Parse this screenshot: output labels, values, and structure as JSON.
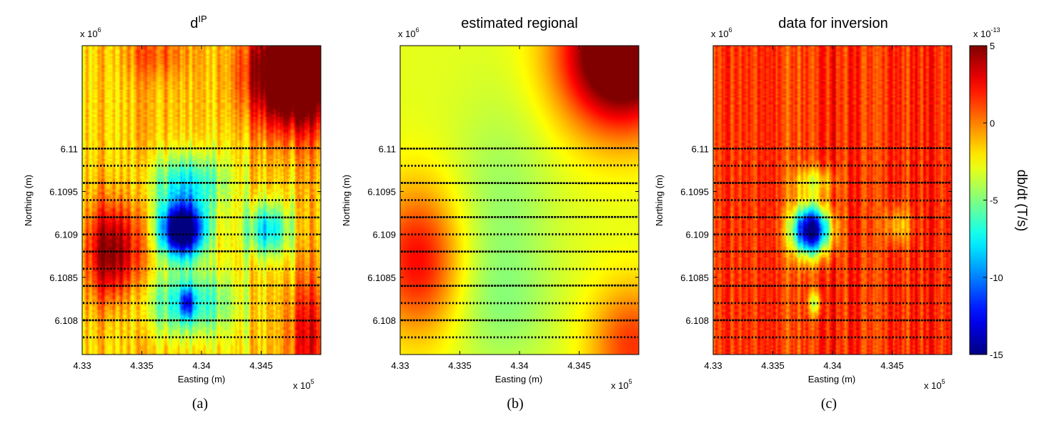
{
  "chart_data": [
    {
      "id": "a",
      "type": "heatmap",
      "title": "d",
      "title_sup": "IP",
      "subfigure_label": "(a)",
      "xlabel": "Easting (m)",
      "ylabel": "Northing (m)",
      "x_exponent_label": "x 10",
      "x_exponent": "5",
      "y_exponent_label": "x 10",
      "y_exponent": "6",
      "xlim": [
        4.33,
        4.35
      ],
      "ylim": [
        6.1076,
        6.1112
      ],
      "x_ticks": [
        4.33,
        4.335,
        4.34,
        4.345
      ],
      "x_tick_labels": [
        "4.33",
        "4.335",
        "4.34",
        "4.345"
      ],
      "y_ticks": [
        6.108,
        6.1085,
        6.109,
        6.1095,
        6.11
      ],
      "y_tick_labels": [
        "6.108",
        "6.1085",
        "6.109",
        "6.1095",
        "6.11"
      ],
      "z_base": -1.5,
      "anomalies": [
        {
          "x": 4.3384,
          "y": 6.10905,
          "value": -17,
          "rx": 0.0013,
          "ry": 0.00022
        },
        {
          "x": 4.3388,
          "y": 6.1096,
          "value": -6,
          "rx": 0.0022,
          "ry": 0.00025
        },
        {
          "x": 4.3455,
          "y": 6.10905,
          "value": -6.5,
          "rx": 0.0013,
          "ry": 0.00022
        },
        {
          "x": 4.3388,
          "y": 6.1082,
          "value": -6,
          "rx": 0.0025,
          "ry": 0.00028
        },
        {
          "x": 4.3388,
          "y": 6.1082,
          "value": -6,
          "rx": 0.0004,
          "ry": 0.00012
        },
        {
          "x": 4.3478,
          "y": 6.1109,
          "value": 13,
          "rx": 0.0026,
          "ry": 0.00045
        },
        {
          "x": 4.3325,
          "y": 6.1088,
          "value": 7,
          "rx": 0.0015,
          "ry": 0.0004
        },
        {
          "x": 4.349,
          "y": 6.1078,
          "value": 4,
          "rx": 0.0014,
          "ry": 0.0005
        },
        {
          "x": 4.3362,
          "y": 6.1111,
          "value": 2,
          "rx": 0.002,
          "ry": 0.0002
        }
      ],
      "streak_amp": 2.2,
      "survey_lines_y": [
        6.11,
        6.1098,
        6.1096,
        6.1094,
        6.1092,
        6.109,
        6.1088,
        6.1086,
        6.1084,
        6.1082,
        6.108,
        6.1078
      ]
    },
    {
      "id": "b",
      "type": "heatmap",
      "title": "estimated regional",
      "subfigure_label": "(b)",
      "xlabel": "Easting (m)",
      "ylabel": "Northing (m)",
      "x_exponent_label": "x 10",
      "x_exponent": "5",
      "y_exponent_label": "x 10",
      "y_exponent": "6",
      "xlim": [
        4.33,
        4.35
      ],
      "ylim": [
        6.1076,
        6.1112
      ],
      "x_ticks": [
        4.33,
        4.335,
        4.34,
        4.345
      ],
      "x_tick_labels": [
        "4.33",
        "4.335",
        "4.34",
        "4.345"
      ],
      "y_ticks": [
        6.108,
        6.1085,
        6.109,
        6.1095,
        6.11
      ],
      "y_tick_labels": [
        "6.108",
        "6.1085",
        "6.109",
        "6.1095",
        "6.11"
      ],
      "z_base": -3,
      "anomalies": [
        {
          "x": 4.3485,
          "y": 6.1111,
          "value": 12,
          "rx": 0.0035,
          "ry": 0.0006
        },
        {
          "x": 4.3315,
          "y": 6.1087,
          "value": 5.5,
          "rx": 0.0025,
          "ry": 0.0006
        },
        {
          "x": 4.3495,
          "y": 6.1077,
          "value": 4.5,
          "rx": 0.0025,
          "ry": 0.0005
        },
        {
          "x": 4.3385,
          "y": 6.1093,
          "value": -1.5,
          "rx": 0.003,
          "ry": 0.0009
        },
        {
          "x": 4.3385,
          "y": 6.1081,
          "value": -1.2,
          "rx": 0.003,
          "ry": 0.0005
        }
      ],
      "streak_amp": 0,
      "survey_lines_y": [
        6.11,
        6.1098,
        6.1096,
        6.1094,
        6.1092,
        6.109,
        6.1088,
        6.1086,
        6.1084,
        6.1082,
        6.108,
        6.1078
      ]
    },
    {
      "id": "c",
      "type": "heatmap",
      "title": "data for inversion",
      "subfigure_label": "(c)",
      "xlabel": "Easting (m)",
      "ylabel": "Northing (m)",
      "x_exponent_label": "x 10",
      "x_exponent": "5",
      "y_exponent_label": "x 10",
      "y_exponent": "6",
      "xlim": [
        4.33,
        4.35
      ],
      "ylim": [
        6.1076,
        6.1112
      ],
      "x_ticks": [
        4.33,
        4.335,
        4.34,
        4.345
      ],
      "x_tick_labels": [
        "4.33",
        "4.335",
        "4.34",
        "4.345"
      ],
      "y_ticks": [
        6.108,
        6.1085,
        6.109,
        6.1095,
        6.11
      ],
      "y_tick_labels": [
        "6.108",
        "6.1085",
        "6.109",
        "6.1095",
        "6.11"
      ],
      "z_base": 1.5,
      "anomalies": [
        {
          "x": 4.3382,
          "y": 6.10905,
          "value": -17,
          "rx": 0.0011,
          "ry": 0.0002
        },
        {
          "x": 4.3385,
          "y": 6.10962,
          "value": -4,
          "rx": 0.0012,
          "ry": 0.00012
        },
        {
          "x": 4.3385,
          "y": 6.1082,
          "value": -5,
          "rx": 0.00035,
          "ry": 0.0001
        },
        {
          "x": 4.3455,
          "y": 6.1091,
          "value": -3,
          "rx": 0.0008,
          "ry": 0.00015
        }
      ],
      "streak_amp": 2.2,
      "survey_lines_y": [
        6.11,
        6.1098,
        6.1096,
        6.1094,
        6.1092,
        6.109,
        6.1088,
        6.1086,
        6.1084,
        6.1082,
        6.108,
        6.1078
      ]
    }
  ],
  "colorbar": {
    "label": "db/dt (T/s)",
    "exponent_label": "x 10",
    "exponent": "-13",
    "min": -15,
    "max": 5,
    "ticks": [
      5,
      0,
      -5,
      -10,
      -15
    ],
    "tick_labels": [
      "5",
      "0",
      "-5",
      "-10",
      "-15"
    ],
    "colormap": "jet"
  }
}
